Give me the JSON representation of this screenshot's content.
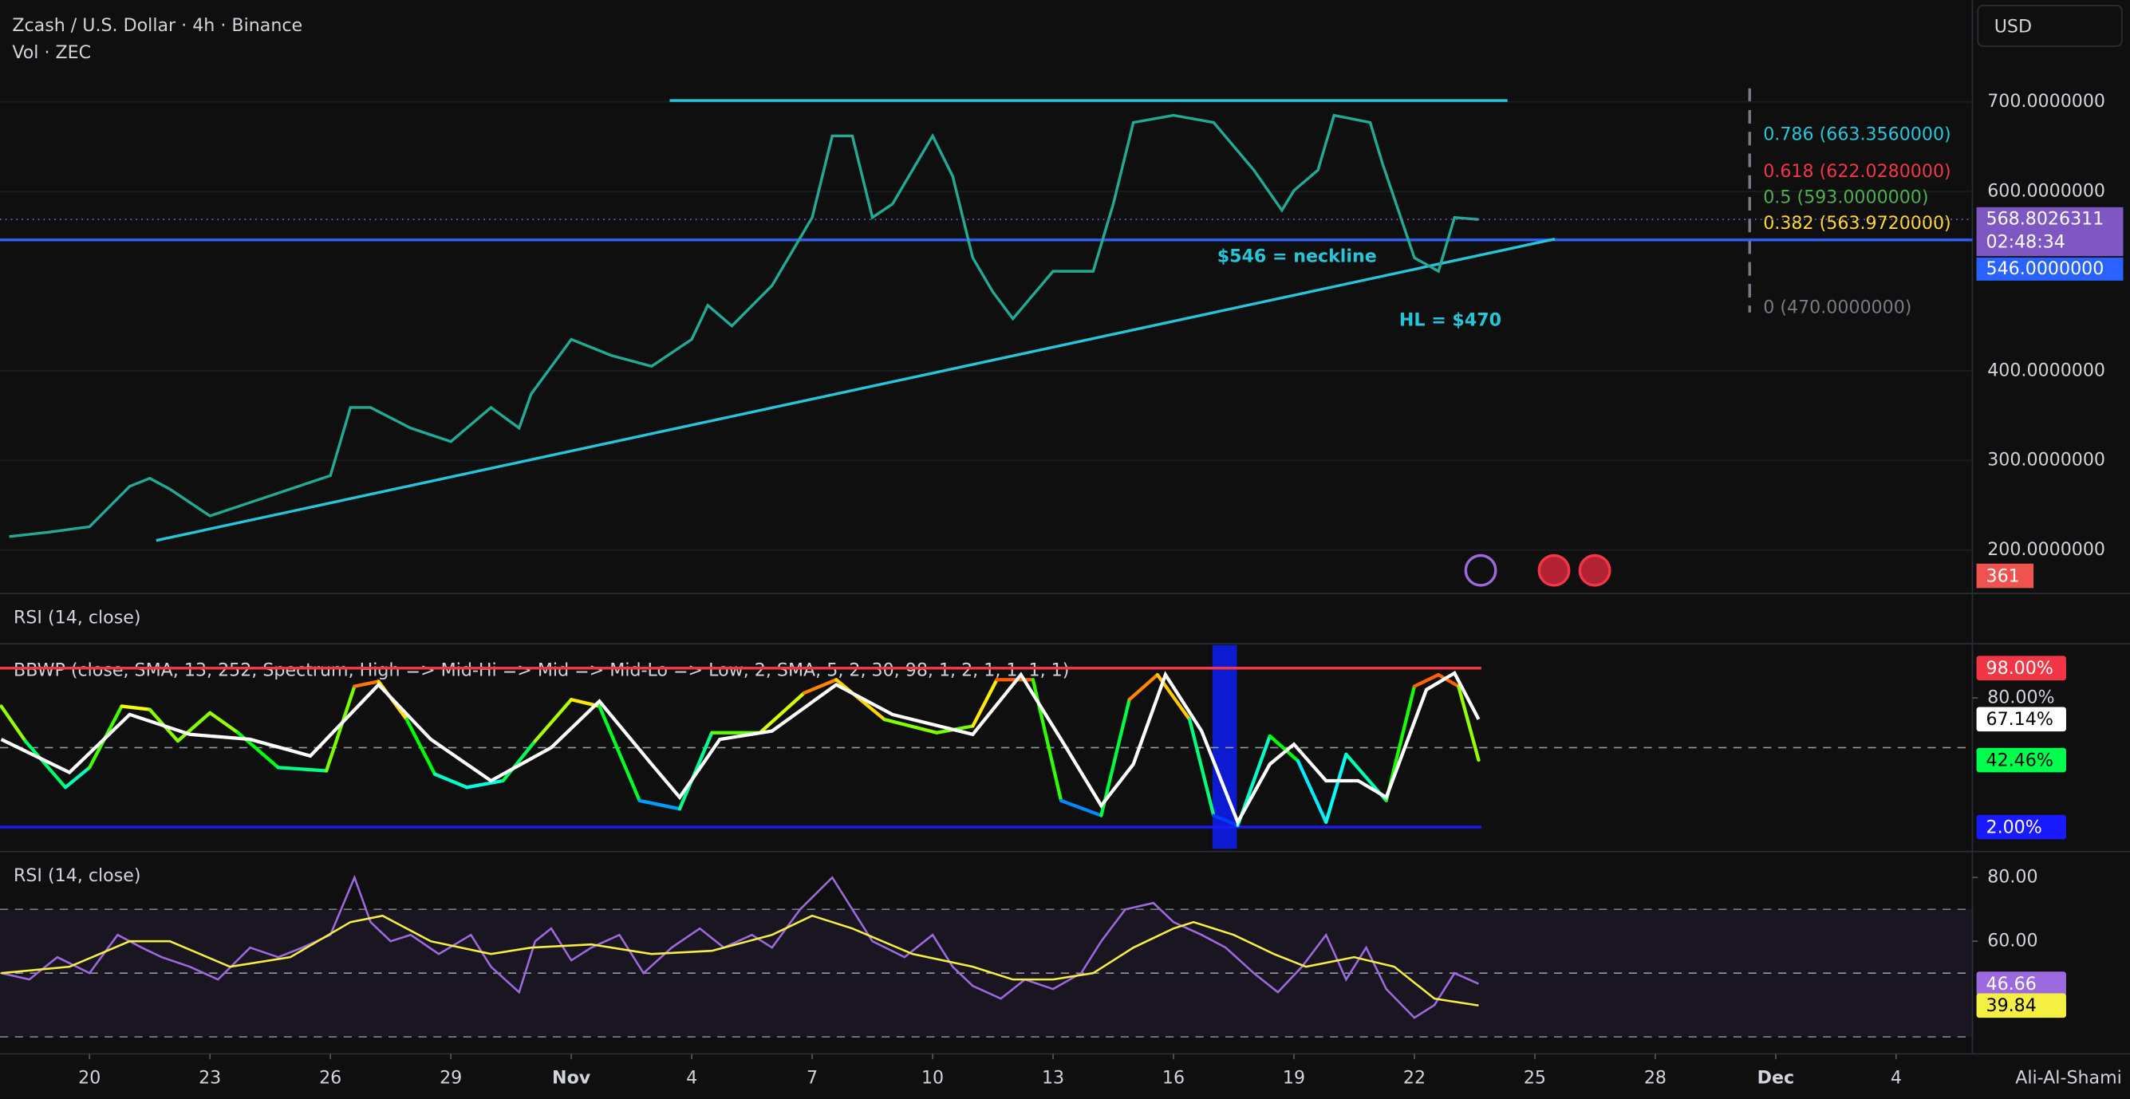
{
  "header": {
    "currency": "USD",
    "watermark": "Ali-Al-Shami"
  },
  "chart_data": [
    {
      "type": "line",
      "title": "Zcash / U.S. Dollar · 4h · Binance",
      "subtitle": "Vol · ZEC",
      "indicator_title": "RSI (14, close)",
      "x": [
        18,
        19,
        20,
        21,
        21.5,
        22,
        23,
        24,
        25,
        26,
        26.5,
        27,
        28,
        29,
        30,
        30.7,
        31,
        32,
        33,
        34,
        35,
        35.4,
        36,
        37,
        38,
        38.5,
        39,
        39.5,
        40,
        41,
        41.5,
        42,
        42.5,
        43,
        44,
        45,
        45.5,
        46,
        47,
        48,
        49,
        49.7,
        50,
        50.6,
        51,
        51.9,
        52.2,
        53,
        53.6,
        54,
        54.6
      ],
      "values": [
        215,
        220,
        226,
        271,
        280,
        268,
        238,
        253,
        268,
        283,
        359,
        359,
        336,
        321,
        359,
        336,
        374,
        435,
        417,
        405,
        435,
        473,
        450,
        495,
        571,
        662,
        662,
        571,
        586,
        662,
        617,
        526,
        488,
        458,
        511,
        511,
        586,
        677,
        685,
        677,
        624,
        579,
        601,
        624,
        685,
        677,
        632,
        526,
        511,
        571,
        568.8026311
      ],
      "color": "#22ab94",
      "last_price_countdown": "02:48:34",
      "volume": 361,
      "xlim": [
        17.77,
        66.9
      ],
      "xticks": [
        20,
        23,
        26,
        29,
        {
          "value": 32,
          "label": "Nov"
        },
        {
          "value": 35,
          "label": "4"
        },
        {
          "value": 38,
          "label": "7"
        },
        {
          "value": 41,
          "label": "10"
        },
        {
          "value": 44,
          "label": "13"
        },
        {
          "value": 47,
          "label": "16"
        },
        {
          "value": 50,
          "label": "19"
        },
        {
          "value": 53,
          "label": "22"
        },
        {
          "value": 56,
          "label": "25"
        },
        {
          "value": 59,
          "label": "28"
        },
        {
          "value": 62,
          "label": "Dec"
        },
        {
          "value": 65,
          "label": "4"
        }
      ],
      "ylim": [
        154.5,
        813.6
      ],
      "yticks": [
        {
          "value": 200,
          "label": "200.0000000"
        },
        {
          "value": 300,
          "label": "300.0000000"
        },
        {
          "value": 400,
          "label": "400.0000000"
        },
        {
          "value": 600,
          "label": "600.0000000"
        },
        {
          "value": 700,
          "label": "700.0000000"
        }
      ],
      "hlines": [
        {
          "value": 546,
          "label": "546.0000000",
          "color": "#2962ff"
        }
      ],
      "trendlines": [
        {
          "x": [
            34.45,
            55.32
          ],
          "y": [
            701.5,
            701.5
          ],
          "color": "#26c6da"
        },
        {
          "x": [
            21.66,
            56.5
          ],
          "y": [
            210.6,
            547
          ],
          "color": "#26c6da"
        }
      ],
      "annotations": [
        "$546 = neckline",
        "HL = $470"
      ],
      "fib_levels": [
        {
          "value": 663.356,
          "label": "0.786 (663.3560000)",
          "color": "#26c6da"
        },
        {
          "value": 622.028,
          "label": "0.618 (622.0280000)",
          "color": "#f23645"
        },
        {
          "value": 593,
          "label": "0.5 (593.0000000)",
          "color": "#4caf50"
        },
        {
          "value": 563.972,
          "label": "0.382 (563.9720000)",
          "color": "#fdd835"
        },
        {
          "value": 470,
          "label": "0 (470.0000000)",
          "color": "#787b86"
        }
      ]
    },
    {
      "type": "line",
      "title": "BBWP (close, SMA, 13, 252, Spectrum, High => Mid-Hi => Mid => Mid-Lo => Low, 2, SMA, 5, 2, 30, 98, 1, 2, 1, 1, 1, 1)",
      "ylim": [
        -11.1,
        111.9
      ],
      "yticks": [
        {
          "value": 80,
          "label": "80.00%"
        }
      ],
      "midline": 50,
      "levels": [
        {
          "value": 98,
          "label": "98.00%",
          "color": "#f23645"
        },
        {
          "value": 2,
          "label": "2.00%",
          "color": "#1a1aff"
        }
      ],
      "highlight": [
        47.97,
        48.58
      ],
      "highlight_color": "#0c1ad0",
      "series": [
        {
          "colormap": "spectrum",
          "last_label": "42.46%",
          "x": [
            17.8,
            18.4,
            19.4,
            20,
            20.8,
            21.5,
            22.2,
            23,
            23.7,
            24.7,
            25.9,
            26.6,
            27.2,
            27.9,
            28.6,
            29.4,
            30.3,
            31.1,
            32,
            32.7,
            33.7,
            34.7,
            35.5,
            36.7,
            37.8,
            38.6,
            39.8,
            41.1,
            42,
            42.6,
            43.5,
            44.2,
            45.2,
            45.9,
            46.6,
            47.4,
            48,
            48.6,
            49.4,
            50.1,
            50.8,
            51.3,
            52.3,
            53,
            53.6,
            54.1,
            54.6
          ],
          "values": [
            75,
            54,
            26,
            38,
            75,
            73,
            54,
            71,
            59,
            38,
            36,
            87,
            90,
            67,
            34,
            26,
            30,
            54,
            79,
            75,
            18,
            13,
            59,
            59,
            83,
            91,
            67,
            59,
            63,
            91,
            91,
            18,
            9,
            79,
            94,
            67,
            9,
            3,
            57,
            42,
            5,
            46,
            18,
            87,
            94,
            87,
            42.46
          ]
        },
        {
          "color": "#ffffff",
          "last_label": "67.14%",
          "x": [
            17.8,
            19.5,
            21,
            22.5,
            24,
            25.5,
            27.2,
            28.5,
            30,
            31.5,
            32.7,
            34,
            34.7,
            35.7,
            37,
            38.6,
            40,
            42,
            43.2,
            44.2,
            45.2,
            46,
            46.8,
            47.7,
            48.6,
            49.4,
            50,
            50.8,
            51.6,
            52.3,
            53.3,
            54,
            54.6
          ],
          "values": [
            55,
            35,
            70,
            58,
            55,
            45,
            88,
            55,
            30,
            50,
            78,
            40,
            20,
            55,
            60,
            88,
            70,
            58,
            94,
            55,
            15,
            40,
            94,
            60,
            5,
            40,
            52,
            30,
            30,
            20,
            85,
            95,
            67.14
          ]
        }
      ]
    },
    {
      "type": "line",
      "title": "RSI (14, close)",
      "ylim": [
        25.1,
        84.3
      ],
      "yticks": [
        {
          "value": 60,
          "label": "60.00"
        },
        {
          "value": 80,
          "label": "80.00"
        }
      ],
      "band": [
        30,
        70
      ],
      "band_color": "#7e57c2",
      "midline": 50,
      "series": [
        {
          "color": "#9c6ade",
          "x": [
            17.8,
            18.5,
            19.2,
            20,
            20.7,
            21.3,
            21.8,
            22.5,
            23.2,
            24,
            24.7,
            25.3,
            26,
            26.6,
            27,
            27.5,
            28,
            28.7,
            29.5,
            30,
            30.7,
            31.1,
            31.5,
            32,
            32.5,
            33.2,
            33.8,
            34.5,
            35.2,
            35.8,
            36.5,
            37,
            37.7,
            38.5,
            39,
            39.5,
            40.3,
            41,
            41.5,
            42,
            42.7,
            43.3,
            44,
            44.7,
            45.2,
            45.8,
            46.5,
            47,
            47.7,
            48.3,
            49,
            49.6,
            50.2,
            50.8,
            51.3,
            51.8,
            52.3,
            53,
            53.5,
            54,
            54.6
          ],
          "values": [
            50,
            48,
            55,
            50,
            62,
            58,
            55,
            52,
            48,
            58,
            55,
            58,
            62,
            80,
            66,
            60,
            62,
            56,
            62,
            52,
            44,
            60,
            64,
            54,
            58,
            62,
            50,
            58,
            64,
            58,
            62,
            58,
            70,
            80,
            70,
            60,
            55,
            62,
            52,
            46,
            42,
            48,
            45,
            50,
            60,
            70,
            72,
            66,
            62,
            58,
            50,
            44,
            52,
            62,
            48,
            58,
            45,
            36,
            40,
            50,
            46.66
          ]
        },
        {
          "color": "#f5ef42",
          "x": [
            17.8,
            19.5,
            21,
            22,
            23.5,
            25,
            26.5,
            27.3,
            28.5,
            30,
            31,
            32.5,
            34,
            35.5,
            37,
            38,
            39,
            40.5,
            42,
            43,
            44,
            45,
            46,
            47,
            47.5,
            48.5,
            49.5,
            50.3,
            51.5,
            52.5,
            53.5,
            54.6
          ],
          "values": [
            50,
            52,
            60,
            60,
            52,
            55,
            66,
            68,
            60,
            56,
            58,
            59,
            56,
            57,
            62,
            68,
            64,
            56,
            52,
            48,
            48,
            50,
            58,
            64,
            66,
            62,
            56,
            52,
            55,
            52,
            42,
            39.84
          ]
        }
      ]
    }
  ]
}
